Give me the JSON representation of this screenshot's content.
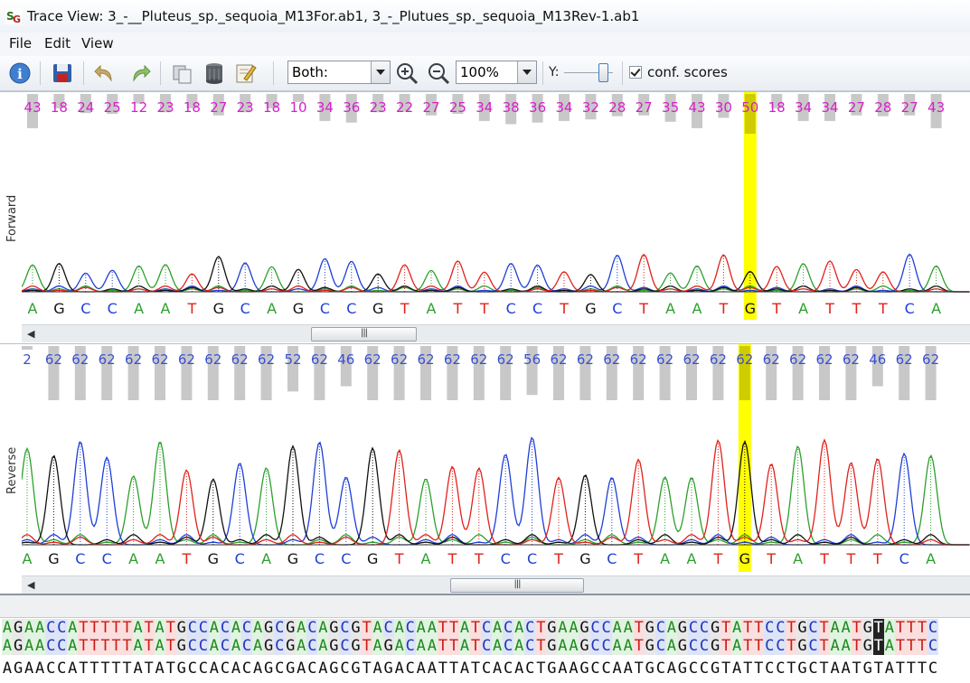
{
  "window": {
    "title": "Trace View: 3_-__Pluteus_sp._sequoia_M13For.ab1, 3_-_Plutues_sp._sequoia_M13Rev-1.ab1"
  },
  "menu": [
    {
      "label": "File"
    },
    {
      "label": "Edit"
    },
    {
      "label": "View"
    }
  ],
  "toolbar": {
    "strand_select": "Both:",
    "zoom_select": "100%",
    "y_label": "Y:",
    "y_scale_level": 0.85,
    "conf_scores_label": "conf. scores",
    "conf_scores_checked": true,
    "icons": [
      "info-icon",
      "save-icon",
      "undo-icon",
      "redo-icon",
      "copy-icon",
      "delete-icon",
      "edit-icon",
      "zoom-in-icon",
      "zoom-out-icon"
    ]
  },
  "forward": {
    "label": "Forward",
    "bases": [
      "A",
      "G",
      "C",
      "C",
      "A",
      "A",
      "T",
      "G",
      "C",
      "A",
      "G",
      "C",
      "C",
      "G",
      "T",
      "A",
      "T",
      "T",
      "C",
      "C",
      "T",
      "G",
      "C",
      "T",
      "A",
      "A",
      "T",
      "G",
      "T",
      "A",
      "T",
      "T",
      "T",
      "C",
      "A"
    ],
    "scores": [
      "43",
      "18",
      "24",
      "25",
      "12",
      "23",
      "18",
      "27",
      "23",
      "18",
      "10",
      "34",
      "36",
      "23",
      "22",
      "27",
      "25",
      "34",
      "38",
      "36",
      "34",
      "32",
      "28",
      "27",
      "35",
      "43",
      "30",
      "50",
      "18",
      "34",
      "34",
      "27",
      "28",
      "27",
      "43"
    ]
  },
  "reverse": {
    "label": "Reverse",
    "bases": [
      "A",
      "G",
      "C",
      "C",
      "A",
      "A",
      "T",
      "G",
      "C",
      "A",
      "G",
      "C",
      "C",
      "G",
      "T",
      "A",
      "T",
      "T",
      "C",
      "C",
      "T",
      "G",
      "C",
      "T",
      "A",
      "A",
      "T",
      "G",
      "T",
      "A",
      "T",
      "T",
      "T",
      "C",
      "A"
    ],
    "scores": [
      "2",
      "62",
      "62",
      "62",
      "62",
      "62",
      "62",
      "62",
      "62",
      "62",
      "52",
      "62",
      "46",
      "62",
      "62",
      "62",
      "62",
      "62",
      "62",
      "56",
      "62",
      "62",
      "62",
      "62",
      "62",
      "62",
      "62",
      "62",
      "62",
      "62",
      "62",
      "62",
      "46",
      "62",
      "62"
    ]
  },
  "highlight_index": 27,
  "alignment": {
    "row1": "AGAACCATTTTTATATGCCACACAGCGACAGCGTACACAATTATCACACTGAAGCCAATGCAGCCGTATTCCTGCTAATGTATTTC",
    "row2": "AGAACCATTTTTATATGCCACACAGCGACAGCGTAGACAATTATCACACTGAAGCCAATGCAGCCGTATTCCTGCTAATGTATTTC",
    "consensus": "AGAACCATTTTTATATGCCACACAGCGACAGCGTAGACAATTATCACACTGAAGCCAATGCAGCCGTATTCCTGCTAATGTATTTC",
    "cursor_index": 80
  },
  "colors": {
    "A": "#2ca02c",
    "C": "#1f3fd6",
    "G": "#111111",
    "T": "#e0221b",
    "fwd_score": "#d61fc8",
    "rev_score": "#3a4fd0",
    "highlight": "#ffff00"
  }
}
